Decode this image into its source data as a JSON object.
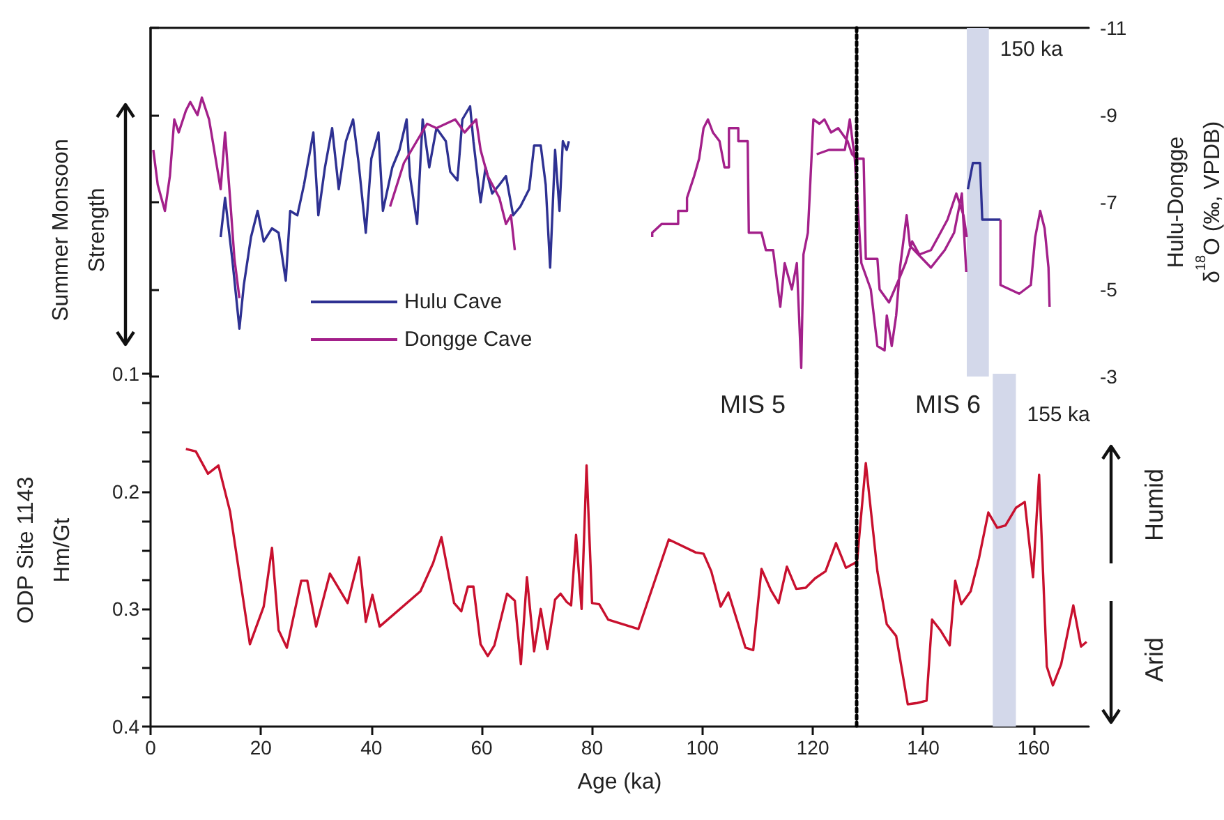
{
  "chart_data": [
    {
      "type": "line",
      "ylabel": "Hulu-Dongge\nδ$^{18}$O (‰, VPDB)",
      "xlim": [
        0,
        170
      ],
      "ylim": [
        -3,
        -11
      ],
      "yticks": [
        -11,
        -9,
        -7,
        -5,
        -3
      ],
      "tick_labels": "y",
      "grid": false,
      "legend": "bottom left",
      "marker": "none",
      "line_style": "solid",
      "annotations": [
        "Summer Monsoon\nStrength"
      ],
      "ref_lines": [
        {
          "axis": "x",
          "value": 128,
          "color": "#000000",
          "line_style": "dotted"
        }
      ],
      "bands": [
        {
          "axis": "x",
          "from": 147.9,
          "to": 151.9,
          "label": "150 ka",
          "color": "#d3d8ea"
        }
      ],
      "series": [
        {
          "name": "Hulu Cave",
          "color": "#2e3192",
          "x": [
            12.7,
            13.5,
            14.8,
            16.1,
            16.9,
            18.2,
            19.4,
            20.5,
            22.0,
            23.2,
            24.5,
            25.3,
            26.6,
            27.8,
            29.5,
            30.4,
            31.6,
            32.9,
            34.1,
            35.4,
            36.7,
            37.7,
            39.0,
            40.0,
            41.3,
            42.1,
            43.8,
            45.1,
            46.4,
            47.0,
            48.3,
            49.3,
            50.5,
            51.8,
            53.5,
            54.3,
            55.6,
            56.5,
            57.9,
            58.5,
            59.8,
            60.7,
            61.9,
            63.2,
            64.4,
            65.7,
            67.0,
            68.6,
            69.5,
            70.7,
            71.6,
            72.4,
            73.3,
            74.1,
            74.7,
            75.4,
            75.8,
            110,
            148.1,
            149.0,
            150.3,
            150.7,
            154.0
          ],
          "values": [
            -6.2,
            -7.1,
            -5.7,
            -4.1,
            -5.1,
            -6.2,
            -6.8,
            -6.1,
            -6.4,
            -6.3,
            -5.2,
            -6.8,
            -6.7,
            -7.4,
            -8.6,
            -6.7,
            -7.8,
            -8.7,
            -7.3,
            -8.4,
            -8.9,
            -7.9,
            -6.3,
            -8.0,
            -8.6,
            -6.8,
            -7.8,
            -8.2,
            -8.9,
            -7.6,
            -6.5,
            -8.9,
            -7.8,
            -8.7,
            -8.4,
            -7.7,
            -7.5,
            -8.9,
            -9.2,
            -8.4,
            -7.0,
            -7.8,
            -7.2,
            -7.4,
            -7.6,
            -6.7,
            -6.9,
            -7.3,
            -8.3,
            -8.3,
            -7.4,
            -5.5,
            -8.2,
            -6.8,
            -8.4,
            -8.2,
            -8.4,
            null,
            -7.3,
            -7.9,
            -7.9,
            -6.6,
            -6.6
          ]
        },
        {
          "name": "Dongge Cave",
          "color": "#a3208a",
          "x": [
            0.5,
            1.3,
            2.6,
            3.5,
            4.3,
            5.1,
            6.4,
            7.2,
            8.5,
            9.3,
            10.6,
            11.4,
            12.7,
            13.5,
            14.4,
            15.2,
            16.1,
            30,
            43.4,
            45.9,
            50.1,
            51.8,
            55.2,
            56.9,
            59.0,
            59.8,
            61.1,
            63.2,
            64.4,
            65.3,
            66.0,
            80,
            90.9,
            90.9,
            92.6,
            95.6,
            95.6,
            97.2,
            97.2,
            98.5,
            99.4,
            100.2,
            101.0,
            101.9,
            103.1,
            104.0,
            104.8,
            104.8,
            106.5,
            106.5,
            108.2,
            108.4,
            110.7,
            111.5,
            112.8,
            114.1,
            114.9,
            116.2,
            117.1,
            117.9,
            118.3,
            119.1,
            120.1,
            121.2,
            122.1,
            123.3,
            124.6,
            126.3,
            127.1,
            127.9,
            129.2,
            129.6,
            131.7,
            132.1,
            133.8,
            135.5,
            136.8,
            138.0,
            139.3,
            141.4,
            142.7,
            144.4,
            146.0,
            147.3,
            147.9,
            151,
            154.0,
            154.0,
            157.4,
            159.5,
            160.3,
            161.2,
            162.0,
            162.7,
            162.9,
            140,
            120.7,
            122.9,
            125.8,
            126.7,
            127.6,
            128.8,
            130.5,
            131.7,
            133.0,
            133.4,
            134.3,
            135.1,
            135.8,
            137.0,
            137.6,
            141.4,
            143.9,
            145.6,
            147.0,
            147.8
          ],
          "values": [
            -8.2,
            -7.4,
            -6.8,
            -7.6,
            -8.9,
            -8.6,
            -9.1,
            -9.3,
            -9.0,
            -9.4,
            -8.9,
            -8.3,
            -7.3,
            -8.6,
            -7.1,
            -5.7,
            -4.8,
            null,
            -6.9,
            -7.9,
            -8.8,
            -8.7,
            -8.9,
            -8.6,
            -8.9,
            -8.2,
            -7.6,
            -7.1,
            -6.5,
            -6.7,
            -5.9,
            null,
            -6.2,
            -6.3,
            -6.5,
            -6.5,
            -6.8,
            -6.8,
            -7.1,
            -7.6,
            -8.0,
            -8.7,
            -8.9,
            -8.6,
            -8.4,
            -7.8,
            -7.8,
            -8.7,
            -8.7,
            -8.4,
            -8.4,
            -6.3,
            -6.3,
            -5.9,
            -5.9,
            -4.6,
            -5.6,
            -5.0,
            -5.6,
            -3.2,
            -5.8,
            -6.3,
            -8.9,
            -8.8,
            -8.9,
            -8.6,
            -8.7,
            -8.4,
            -8.1,
            -8.0,
            -8.0,
            -5.7,
            -5.7,
            -5.0,
            -4.7,
            -5.2,
            -5.6,
            -6.1,
            -5.8,
            -5.9,
            -6.2,
            -6.6,
            -7.2,
            -6.7,
            -6.2,
            null,
            -6.6,
            -5.1,
            -4.9,
            -5.1,
            -6.2,
            -6.8,
            -6.4,
            -5.5,
            -4.6,
            null,
            -8.1,
            -8.2,
            -8.2,
            -8.9,
            -8.0,
            -5.6,
            -5.0,
            -3.7,
            -3.6,
            -4.4,
            -3.7,
            -4.4,
            -5.5,
            -6.7,
            -6.0,
            -5.5,
            -5.9,
            -6.3,
            -7.2,
            -5.4
          ]
        }
      ]
    },
    {
      "type": "line",
      "xlabel": "Age (ka)",
      "ylabel": "ODP Site 1143\nHm/Gt",
      "xlim": [
        0,
        170
      ],
      "xticks": [
        0,
        20,
        40,
        60,
        80,
        100,
        120,
        140,
        160
      ],
      "ylim": [
        0.4,
        0.1
      ],
      "yticks": [
        0.1,
        {
          "value": 0.125,
          "label": null
        },
        {
          "value": 0.15,
          "label": null
        },
        {
          "value": 0.175,
          "label": null
        },
        0.2,
        {
          "value": 0.225,
          "label": null
        },
        {
          "value": 0.25,
          "label": null
        },
        {
          "value": 0.275,
          "label": null
        },
        0.3,
        {
          "value": 0.325,
          "label": null
        },
        {
          "value": 0.35,
          "label": null
        },
        {
          "value": 0.375,
          "label": null
        },
        0.4
      ],
      "grid": false,
      "marker": "none",
      "line_style": "solid",
      "annotations": [
        "MIS 5",
        "MIS 6",
        "Humid",
        "Arid"
      ],
      "ref_lines": [
        {
          "axis": "x",
          "value": 128,
          "color": "#000000",
          "line_style": "dotted"
        }
      ],
      "bands": [
        {
          "axis": "x",
          "from": 152.6,
          "to": 156.8,
          "label": "155 ka",
          "color": "#d3d8ea"
        }
      ],
      "series": [
        {
          "color": "#c8102e",
          "x": [
            6.4,
            8.2,
            10.4,
            12.3,
            14.4,
            18.0,
            20.5,
            22.0,
            23.2,
            24.7,
            27.3,
            28.4,
            30.0,
            32.5,
            35.7,
            37.8,
            39.0,
            40.2,
            41.5,
            48.9,
            51.2,
            52.7,
            55.0,
            56.3,
            57.5,
            58.5,
            59.8,
            61.1,
            62.3,
            64.6,
            66.0,
            67.1,
            68.2,
            69.5,
            70.7,
            71.9,
            73.3,
            74.3,
            75.4,
            76.2,
            77.1,
            78.1,
            79.0,
            80.0,
            81.3,
            82.9,
            88.4,
            93.9,
            98.8,
            100.2,
            101.6,
            103.3,
            104.7,
            107.8,
            109.2,
            110.7,
            112.4,
            113.8,
            115.3,
            117.0,
            118.7,
            120.4,
            122.3,
            124.2,
            126.0,
            128.0,
            129.6,
            131.7,
            133.4,
            135.1,
            137.2,
            138.9,
            140.6,
            141.6,
            143.1,
            144.8,
            145.8,
            146.9,
            148.6,
            150.1,
            151.8,
            153.4,
            154.9,
            156.8,
            158.4,
            159.9,
            161.0,
            162.4,
            163.5,
            165.0,
            167.2,
            168.6,
            169.6
          ],
          "values": [
            0.164,
            0.166,
            0.185,
            0.178,
            0.217,
            0.33,
            0.298,
            0.248,
            0.318,
            0.333,
            0.276,
            0.276,
            0.315,
            0.27,
            0.295,
            0.256,
            0.311,
            0.288,
            0.315,
            0.285,
            0.261,
            0.239,
            0.295,
            0.302,
            0.281,
            0.281,
            0.33,
            0.34,
            0.331,
            0.287,
            0.293,
            0.347,
            0.273,
            0.336,
            0.3,
            0.334,
            0.292,
            0.287,
            0.294,
            0.297,
            0.237,
            0.3,
            0.178,
            0.295,
            0.296,
            0.309,
            0.317,
            0.241,
            0.252,
            0.253,
            0.268,
            0.298,
            0.286,
            0.333,
            0.335,
            0.266,
            0.284,
            0.295,
            0.264,
            0.283,
            0.282,
            0.274,
            0.268,
            0.244,
            0.265,
            0.26,
            0.176,
            0.268,
            0.313,
            0.323,
            0.381,
            0.38,
            0.378,
            0.309,
            0.318,
            0.331,
            0.276,
            0.296,
            0.285,
            0.257,
            0.218,
            0.231,
            0.229,
            0.214,
            0.209,
            0.273,
            0.186,
            0.349,
            0.365,
            0.347,
            0.297,
            0.332,
            0.328
          ]
        }
      ]
    }
  ]
}
